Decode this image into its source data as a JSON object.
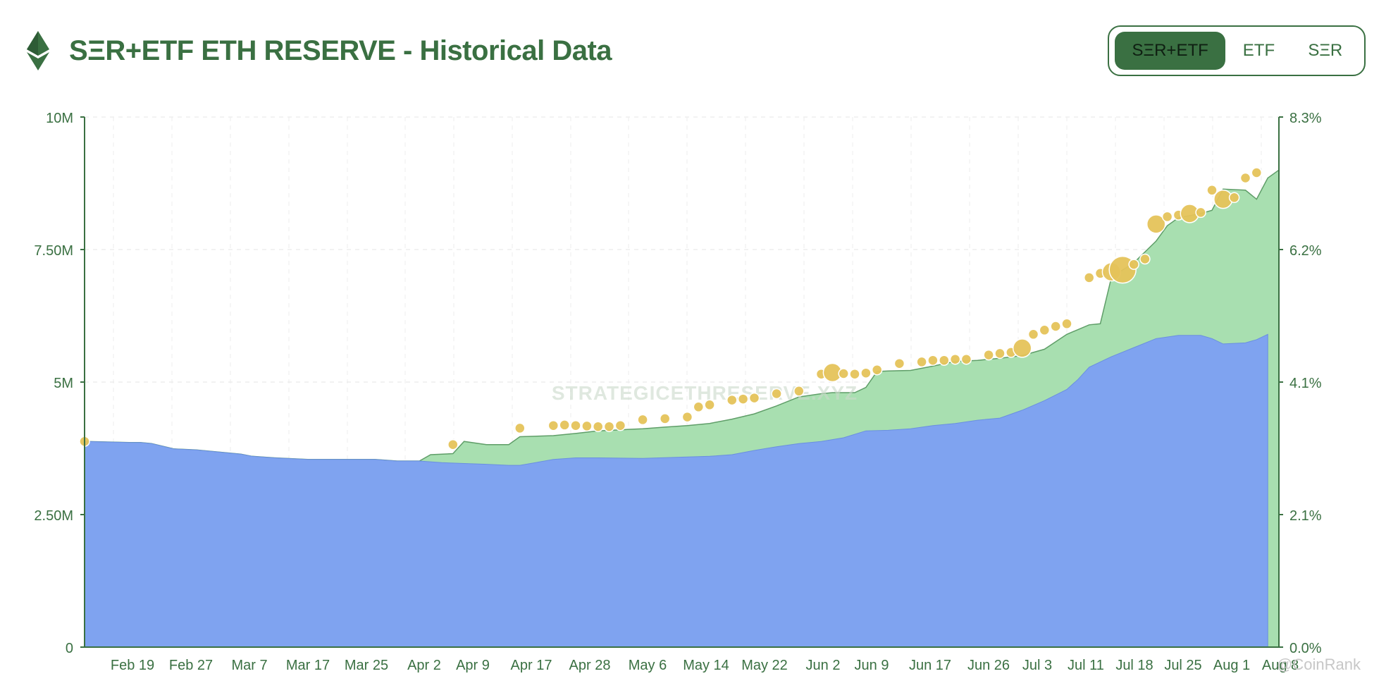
{
  "header": {
    "title": "SΞR+ETF ETH RESERVE - Historical Data",
    "logo_icon": "ethereum-icon"
  },
  "toggle": {
    "options": [
      "SΞR+ETF",
      "ETF",
      "SΞR"
    ],
    "selected": "SΞR+ETF"
  },
  "watermark": "STRATEGICETHRESERVE.XYZ",
  "credit": "@CoinRank",
  "colors": {
    "accent": "#3a7042",
    "etf_fill": "#a8dfb0",
    "ser_fill": "#7fa3f0",
    "marker": "#e5c35a"
  },
  "chart_data": {
    "type": "area",
    "title": "",
    "xlabel": "",
    "ylabel": "",
    "ylim": [
      0,
      10000000
    ],
    "y_ticks": [
      "0",
      "2.50M",
      "5M",
      "7.50M",
      "10M"
    ],
    "y2lim": [
      0,
      8.3
    ],
    "y2_ticks": [
      "0.0%",
      "2.1%",
      "4.1%",
      "6.2%",
      "8.3%"
    ],
    "x_ticks": [
      "Feb 19",
      "Feb 27",
      "Mar 7",
      "Mar 17",
      "Mar 25",
      "Apr 2",
      "Apr 9",
      "Apr 17",
      "Apr 28",
      "May 6",
      "May 14",
      "May 22",
      "Jun 2",
      "Jun 9",
      "Jun 17",
      "Jun 26",
      "Jul 3",
      "Jul 11",
      "Jul 18",
      "Jul 25",
      "Aug 1",
      "Aug 8"
    ],
    "grid": true,
    "series": [
      {
        "stack": "lower",
        "points": [
          [
            0,
            3.88
          ],
          [
            4,
            3.86
          ],
          [
            5,
            3.86
          ],
          [
            6,
            3.84
          ],
          [
            8,
            3.74
          ],
          [
            10,
            3.72
          ],
          [
            12,
            3.68
          ],
          [
            14,
            3.64
          ],
          [
            15,
            3.6
          ],
          [
            17,
            3.57
          ],
          [
            20,
            3.54
          ],
          [
            24,
            3.54
          ],
          [
            26,
            3.54
          ],
          [
            28,
            3.51
          ],
          [
            30,
            3.51
          ],
          [
            32,
            3.48
          ],
          [
            36,
            3.45
          ],
          [
            38,
            3.43
          ],
          [
            39,
            3.43
          ],
          [
            42,
            3.54
          ],
          [
            44,
            3.57
          ],
          [
            46,
            3.57
          ],
          [
            50,
            3.56
          ],
          [
            53,
            3.58
          ],
          [
            56,
            3.6
          ],
          [
            58,
            3.63
          ],
          [
            60,
            3.71
          ],
          [
            62,
            3.78
          ],
          [
            64,
            3.84
          ],
          [
            66,
            3.88
          ],
          [
            68,
            3.95
          ],
          [
            70,
            4.08
          ],
          [
            72,
            4.09
          ],
          [
            74,
            4.12
          ],
          [
            76,
            4.18
          ],
          [
            78,
            4.22
          ],
          [
            80,
            4.28
          ],
          [
            82,
            4.32
          ],
          [
            84,
            4.47
          ],
          [
            86,
            4.65
          ],
          [
            88,
            4.86
          ],
          [
            89,
            5.05
          ],
          [
            90,
            5.28
          ],
          [
            92,
            5.48
          ],
          [
            94,
            5.65
          ],
          [
            96,
            5.82
          ],
          [
            98,
            5.88
          ],
          [
            100,
            5.88
          ],
          [
            101,
            5.82
          ],
          [
            102,
            5.72
          ],
          [
            104,
            5.74
          ],
          [
            105,
            5.8
          ],
          [
            106,
            5.9
          ]
        ]
      },
      {
        "stack": "total",
        "points": [
          [
            0,
            3.88
          ],
          [
            4,
            3.86
          ],
          [
            5,
            3.86
          ],
          [
            6,
            3.84
          ],
          [
            8,
            3.74
          ],
          [
            10,
            3.72
          ],
          [
            12,
            3.68
          ],
          [
            14,
            3.64
          ],
          [
            15,
            3.6
          ],
          [
            17,
            3.57
          ],
          [
            20,
            3.54
          ],
          [
            24,
            3.54
          ],
          [
            26,
            3.54
          ],
          [
            28,
            3.51
          ],
          [
            30,
            3.51
          ],
          [
            31,
            3.63
          ],
          [
            33,
            3.65
          ],
          [
            34,
            3.88
          ],
          [
            36,
            3.82
          ],
          [
            38,
            3.82
          ],
          [
            39,
            3.97
          ],
          [
            42,
            3.99
          ],
          [
            44,
            4.03
          ],
          [
            46,
            4.08
          ],
          [
            48,
            4.1
          ],
          [
            50,
            4.12
          ],
          [
            52,
            4.15
          ],
          [
            54,
            4.18
          ],
          [
            56,
            4.22
          ],
          [
            58,
            4.3
          ],
          [
            60,
            4.4
          ],
          [
            62,
            4.55
          ],
          [
            64,
            4.72
          ],
          [
            66,
            4.78
          ],
          [
            67,
            4.8
          ],
          [
            69,
            4.8
          ],
          [
            70,
            4.9
          ],
          [
            71,
            5.2
          ],
          [
            72,
            5.21
          ],
          [
            74,
            5.22
          ],
          [
            76,
            5.3
          ],
          [
            78,
            5.39
          ],
          [
            80,
            5.41
          ],
          [
            82,
            5.45
          ],
          [
            84,
            5.5
          ],
          [
            86,
            5.62
          ],
          [
            88,
            5.9
          ],
          [
            90,
            6.08
          ],
          [
            91,
            6.1
          ],
          [
            92,
            6.98
          ],
          [
            94,
            7.25
          ],
          [
            96,
            7.66
          ],
          [
            97,
            7.95
          ],
          [
            98,
            8.1
          ],
          [
            100,
            8.18
          ],
          [
            101,
            8.24
          ],
          [
            102,
            8.64
          ],
          [
            104,
            8.62
          ],
          [
            105,
            8.45
          ],
          [
            106,
            8.85
          ],
          [
            107,
            9.0
          ]
        ]
      }
    ],
    "markers": [
      [
        0,
        3.88,
        1
      ],
      [
        33,
        3.82,
        1
      ],
      [
        39,
        4.13,
        1
      ],
      [
        42,
        4.18,
        1
      ],
      [
        43,
        4.19,
        1
      ],
      [
        44,
        4.18,
        1
      ],
      [
        45,
        4.17,
        1
      ],
      [
        46,
        4.16,
        1
      ],
      [
        47,
        4.16,
        1
      ],
      [
        48,
        4.18,
        1
      ],
      [
        50,
        4.29,
        1
      ],
      [
        52,
        4.31,
        1
      ],
      [
        54,
        4.34,
        1
      ],
      [
        55,
        4.53,
        1
      ],
      [
        56,
        4.57,
        1
      ],
      [
        58,
        4.66,
        1
      ],
      [
        59,
        4.68,
        1
      ],
      [
        60,
        4.7,
        1
      ],
      [
        62,
        4.78,
        1
      ],
      [
        64,
        4.83,
        1
      ],
      [
        66,
        5.15,
        1
      ],
      [
        67,
        5.18,
        2
      ],
      [
        68,
        5.16,
        1
      ],
      [
        69,
        5.15,
        1
      ],
      [
        70,
        5.17,
        1
      ],
      [
        71,
        5.23,
        1
      ],
      [
        73,
        5.35,
        1
      ],
      [
        75,
        5.38,
        1
      ],
      [
        76,
        5.41,
        1
      ],
      [
        77,
        5.41,
        1
      ],
      [
        78,
        5.43,
        1
      ],
      [
        79,
        5.43,
        1
      ],
      [
        81,
        5.51,
        1
      ],
      [
        82,
        5.54,
        1
      ],
      [
        83,
        5.56,
        1
      ],
      [
        84,
        5.64,
        2
      ],
      [
        85,
        5.9,
        1
      ],
      [
        86,
        5.98,
        1
      ],
      [
        87,
        6.05,
        1
      ],
      [
        88,
        6.1,
        1
      ],
      [
        90,
        6.97,
        1
      ],
      [
        91,
        7.05,
        1
      ],
      [
        92,
        7.08,
        2
      ],
      [
        93,
        7.12,
        3
      ],
      [
        94,
        7.22,
        1
      ],
      [
        95,
        7.32,
        1
      ],
      [
        96,
        7.98,
        2
      ],
      [
        97,
        8.12,
        1
      ],
      [
        98,
        8.15,
        1
      ],
      [
        99,
        8.18,
        2
      ],
      [
        100,
        8.2,
        1
      ],
      [
        101,
        8.62,
        1
      ],
      [
        102,
        8.45,
        2
      ],
      [
        103,
        8.48,
        1
      ],
      [
        104,
        8.85,
        1
      ],
      [
        105,
        8.95,
        1
      ]
    ],
    "marker_scale_note": ""
  }
}
